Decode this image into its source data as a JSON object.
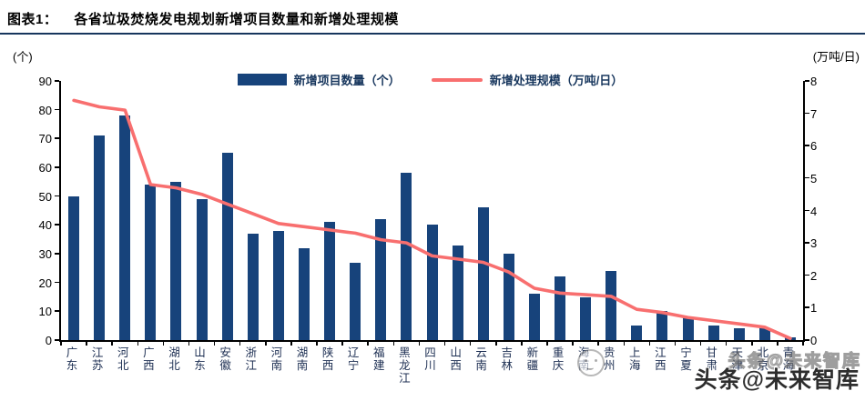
{
  "header": {
    "tag": "图表1：",
    "title": "各省垃圾焚烧发电规划新增项目数量和新增处理规模"
  },
  "axes": {
    "left_unit": "(个)",
    "right_unit": "(万吨/日)",
    "left_ticks": [
      0,
      10,
      20,
      30,
      40,
      50,
      60,
      70,
      80,
      90
    ],
    "right_ticks": [
      0,
      1,
      2,
      3,
      4,
      5,
      6,
      7,
      8
    ]
  },
  "legend": {
    "bar_label": "新增项目数量（个）",
    "line_label": "新增处理规模（万吨/日）"
  },
  "watermark": {
    "text": "头条@未来智库"
  },
  "colors": {
    "bar": "#17437b",
    "line": "#f86f6f",
    "rule": "#17365d"
  },
  "chart_data": {
    "type": "bar",
    "title": "各省垃圾焚烧发电规划新增项目数量和新增处理规模",
    "categories": [
      "广东",
      "江苏",
      "河北",
      "广西",
      "湖北",
      "山东",
      "安徽",
      "浙江",
      "河南",
      "湖南",
      "陕西",
      "辽宁",
      "福建",
      "黑龙江",
      "四川",
      "山西",
      "云南",
      "吉林",
      "新疆",
      "重庆",
      "海南",
      "贵州",
      "上海",
      "江西",
      "宁夏",
      "甘肃",
      "天津",
      "北京",
      "青海"
    ],
    "series": [
      {
        "name": "新增项目数量（个）",
        "type": "bar",
        "axis": "left",
        "values": [
          50,
          71,
          78,
          54,
          55,
          49,
          65,
          37,
          38,
          32,
          41,
          27,
          42,
          58,
          40,
          33,
          46,
          30,
          16,
          22,
          15,
          24,
          5,
          10,
          8,
          5,
          4,
          4,
          1
        ]
      },
      {
        "name": "新增处理规模（万吨/日）",
        "type": "line",
        "axis": "right",
        "values": [
          7.4,
          7.2,
          7.1,
          4.8,
          4.7,
          4.5,
          4.2,
          3.9,
          3.6,
          3.5,
          3.4,
          3.3,
          3.1,
          3.0,
          2.6,
          2.5,
          2.4,
          2.1,
          1.6,
          1.45,
          1.4,
          1.35,
          0.95,
          0.85,
          0.7,
          0.6,
          0.5,
          0.4,
          0.05
        ]
      }
    ],
    "ylabel_left": "(个)",
    "ylabel_right": "(万吨/日)",
    "ylim_left": [
      0,
      90
    ],
    "ylim_right": [
      0,
      8
    ],
    "grid": false,
    "legend_position": "top-center"
  }
}
